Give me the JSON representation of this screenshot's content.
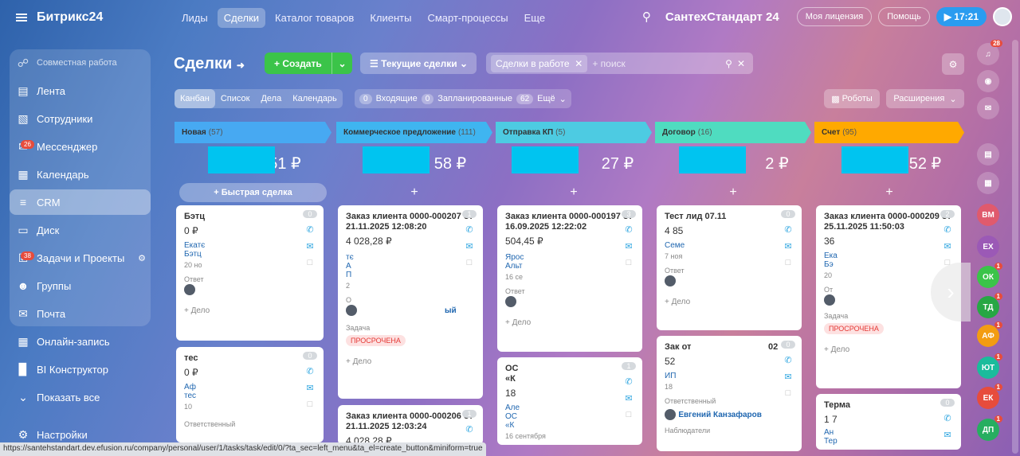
{
  "app": {
    "logo": "Битрикс24",
    "logo_mark": "®"
  },
  "nav": [
    "Лиды",
    "Сделки",
    "Каталог товаров",
    "Клиенты",
    "Смарт-процессы",
    "Еще"
  ],
  "top": {
    "company": "СантехСтандарт 24",
    "license": "Моя лицензия",
    "help": "Помощь",
    "time": "17:21"
  },
  "sidebar": {
    "header": "Совместная работа",
    "items": [
      {
        "label": "Лента",
        "icon": "feed-icon"
      },
      {
        "label": "Сотрудники",
        "icon": "employees-icon"
      },
      {
        "label": "Мессенджер",
        "icon": "chat-icon",
        "badge": "26"
      },
      {
        "label": "Календарь",
        "icon": "calendar-icon"
      },
      {
        "label": "CRM",
        "icon": "crm-icon"
      },
      {
        "label": "Диск",
        "icon": "disk-icon"
      },
      {
        "label": "Задачи и Проекты",
        "icon": "tasks-icon",
        "badge": "38"
      },
      {
        "label": "Группы",
        "icon": "groups-icon"
      },
      {
        "label": "Почта",
        "icon": "mail-icon"
      },
      {
        "label": "Онлайн-запись",
        "icon": "booking-icon"
      },
      {
        "label": "BI Конструктор",
        "icon": "bi-icon"
      },
      {
        "label": "Показать все",
        "icon": "chevron-down-icon"
      },
      {
        "label": "Настройки",
        "icon": "settings-icon"
      }
    ]
  },
  "page": {
    "title": "Сделки",
    "create": "Создать",
    "current": "Текущие сделки",
    "filter_tag": "Сделки в работе",
    "search_placeholder": "+ поиск"
  },
  "views": [
    "Канбан",
    "Список",
    "Дела",
    "Календарь"
  ],
  "counters": [
    {
      "n": "0",
      "label": "Входящие"
    },
    {
      "n": "0",
      "label": "Запланированные"
    },
    {
      "n": "62",
      "label": "Ещё"
    }
  ],
  "toolbar": {
    "robots": "Роботы",
    "extensions": "Расширения"
  },
  "quick_deal": "Быстрая сделка",
  "columns": [
    {
      "title": "Новая",
      "count": "(57)",
      "color": "#47a9f2",
      "sum_tail": "51 ₽"
    },
    {
      "title": "Коммерческое предложение",
      "count": "(111)",
      "color": "#3fb5f0",
      "sum_tail": "58 ₽"
    },
    {
      "title": "Отправка КП",
      "count": "(5)",
      "color": "#4dcbe2",
      "sum_tail": "27 ₽"
    },
    {
      "title": "Договор",
      "count": "(16)",
      "color": "#4fdcc0",
      "sum_tail": "2 ₽"
    },
    {
      "title": "Счет",
      "count": "(95)",
      "color": "#ffa900",
      "sum_tail": "52 ₽"
    }
  ],
  "cards": {
    "c1a": {
      "title": "Бэтц",
      "price": "0 ₽",
      "l1": "Екатє",
      "l2": "Бэтц",
      "date": "20 но",
      "resp": "Ответ",
      "delo": "+ Дело",
      "cnt": "0"
    },
    "c1b": {
      "title": "тес",
      "price": "0 ₽",
      "l1": "Аф",
      "l2": "тес",
      "date": "10",
      "resp": "Ответственный",
      "cnt": "0"
    },
    "c2a": {
      "title": "Заказ клиента 0000-000207 от 21.11.2025 12:08:20",
      "price": "4 028,28 ₽",
      "l1": "тє",
      "l2": "А",
      "l3": "П",
      "date": "2",
      "resp": "О",
      "lname": "ый",
      "task": "Задача",
      "overdue": "ПРОСРОЧЕНА",
      "delo": "+ Дело",
      "cnt": "1"
    },
    "c2b": {
      "title": "Заказ клиента 0000-000206 от 21.11.2025 12:03:24",
      "price": "4 028,28 ₽",
      "cnt": "1"
    },
    "c3a": {
      "title": "Заказ клиента 0000-000197 от 16.09.2025 12:22:02",
      "price": "504,45 ₽",
      "l1": "Ярос",
      "l2": "Альт",
      "date": "16 се",
      "resp": "Ответ",
      "delo": "+ Дело",
      "cnt": "3"
    },
    "c3b": {
      "title": "ОС «К",
      "price": "18",
      "l1": "Але",
      "l2": "ОС",
      "l3": "«К",
      "date": "16 сентября",
      "cnt": "1"
    },
    "c4a": {
      "title": "Тест лид 07.11",
      "price": "4 85",
      "l1": "Семе",
      "date": "7 ноя",
      "resp": "Ответ",
      "delo": "+ Дело",
      "cnt": "0"
    },
    "c4b": {
      "title": "Зак от",
      "tail": "02",
      "price": "52",
      "l1": "ИП",
      "date": "18",
      "resp": "Ответственный",
      "person": "Евгений Канзафаров",
      "watchers": "Наблюдатели",
      "cnt": "0"
    },
    "c5a": {
      "title": "Заказ клиента 0000-000209 от 25.11.2025 11:50:03",
      "price": "36",
      "l1": "Ека",
      "l2": "Бэ",
      "date": "20",
      "resp": "От",
      "task": "Задача",
      "overdue": "ПРОСРОЧЕНА",
      "delo": "+ Дело",
      "cnt": "2"
    },
    "c5b": {
      "title": "Терма",
      "price": "1 7",
      "l1": "Ан",
      "l2": "Тер",
      "cnt": "0"
    }
  },
  "right": [
    {
      "label": "",
      "badge": "28",
      "color": "#ffffff22"
    },
    {
      "label": "BM",
      "color": "#e05a6d"
    },
    {
      "label": "EX",
      "color": "#9b59b6"
    },
    {
      "label": "ОК",
      "color": "#3bc449",
      "badge": "1"
    },
    {
      "label": "ТД",
      "color": "#27a744",
      "badge": "1"
    },
    {
      "label": "АФ",
      "color": "#f39c12",
      "badge": "1"
    },
    {
      "label": "ЮТ",
      "color": "#1abc9c",
      "badge": "1"
    },
    {
      "label": "ЕК",
      "color": "#e74c3c",
      "badge": "1"
    },
    {
      "label": "ДП",
      "color": "#27ae60",
      "badge": "1"
    }
  ],
  "status": "https://santehstandart.dev.efusion.ru/company/personal/user/1/tasks/task/edit/0/?ta_sec=left_menu&ta_el=create_button&miniform=true"
}
